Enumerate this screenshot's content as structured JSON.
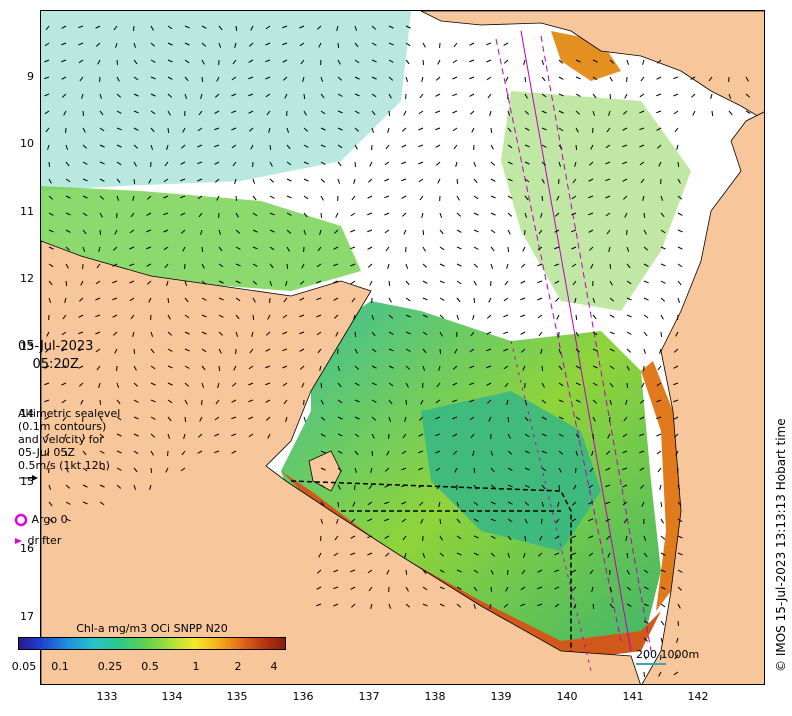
{
  "map": {
    "date": "05-Jul-2023",
    "time": "05:20Z",
    "altimetry_lines": [
      "Altimetric sealevel",
      "(0.1m contours)",
      "and velocity for",
      "05-Jul 05Z",
      "0.5m/s (1kt 12h)"
    ],
    "argo_label": "Argo 0",
    "drifter_label": "drifter",
    "colorbar_title": "Chl-a mg/m3 OCi SNPP N20",
    "colorbar_ticks": [
      "0.05",
      "0.1",
      "0.25",
      "0.5",
      "1",
      "2",
      "4"
    ],
    "scale_label": "200  1000m",
    "credit": "© IMOS 15-Jul-2023 13:13:13 Hobart time",
    "y_ticks": [
      "9",
      "10",
      "11",
      "12",
      "13",
      "14",
      "15",
      "16",
      "17"
    ],
    "x_ticks": [
      "133",
      "134",
      "135",
      "136",
      "137",
      "138",
      "139",
      "140",
      "141",
      "142"
    ],
    "colors": {
      "land": "#f7c79b",
      "coast": "#000000",
      "argo": "#e000e0",
      "track": "#c000c0",
      "scale": "#3ba6a6"
    }
  }
}
